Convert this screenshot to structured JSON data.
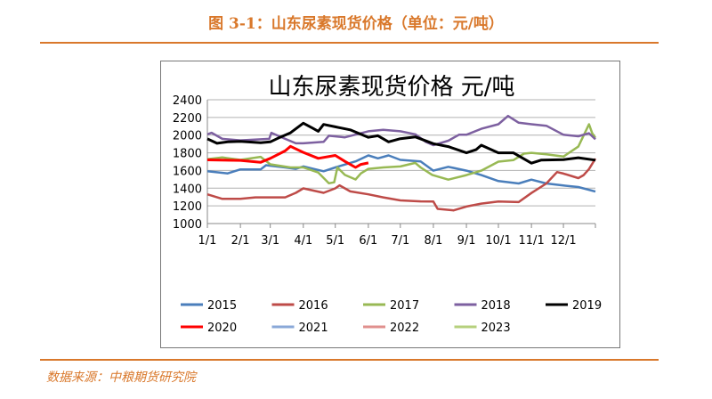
{
  "figure_title": "图 3-1：山东尿素现货价格（单位：元/吨）",
  "source": "数据来源：中粮期货研究院",
  "chart_data": {
    "type": "line",
    "title": "山东尿素现货价格 元/吨",
    "xlabel": "",
    "ylabel": "",
    "ylim": [
      1000,
      2400
    ],
    "yticks": [
      "1000",
      "1200",
      "1400",
      "1600",
      "1800",
      "2000",
      "2200",
      "2400"
    ],
    "xticks": [
      "1/1",
      "2/1",
      "3/1",
      "4/1",
      "5/1",
      "6/1",
      "7/1",
      "8/1",
      "9/1",
      "10/1",
      "11/1",
      "12/1"
    ],
    "grid": "horizontal",
    "legend": "bottom",
    "series": [
      {
        "name": "2015",
        "color": "#4a7ebb",
        "points": [
          [
            "01-01",
            1591
          ],
          [
            "01-20",
            1567
          ],
          [
            "02-01",
            1612
          ],
          [
            "02-20",
            1612
          ],
          [
            "02-25",
            1660
          ],
          [
            "03-15",
            1635
          ],
          [
            "03-25",
            1618
          ],
          [
            "04-01",
            1646
          ],
          [
            "04-20",
            1591
          ],
          [
            "05-01",
            1635
          ],
          [
            "05-20",
            1703
          ],
          [
            "06-01",
            1771
          ],
          [
            "06-10",
            1737
          ],
          [
            "06-20",
            1771
          ],
          [
            "07-01",
            1720
          ],
          [
            "07-20",
            1703
          ],
          [
            "08-01",
            1598
          ],
          [
            "08-15",
            1642
          ],
          [
            "09-01",
            1598
          ],
          [
            "09-15",
            1548
          ],
          [
            "10-01",
            1480
          ],
          [
            "10-20",
            1453
          ],
          [
            "11-01",
            1497
          ],
          [
            "11-15",
            1453
          ],
          [
            "12-01",
            1430
          ],
          [
            "12-15",
            1413
          ],
          [
            "12-31",
            1362
          ]
        ]
      },
      {
        "name": "2016",
        "color": "#be4b48",
        "points": [
          [
            "01-01",
            1330
          ],
          [
            "01-15",
            1279
          ],
          [
            "02-01",
            1279
          ],
          [
            "02-15",
            1296
          ],
          [
            "03-01",
            1296
          ],
          [
            "03-15",
            1296
          ],
          [
            "03-25",
            1347
          ],
          [
            "04-01",
            1398
          ],
          [
            "04-20",
            1347
          ],
          [
            "05-01",
            1398
          ],
          [
            "05-05",
            1432
          ],
          [
            "05-15",
            1364
          ],
          [
            "06-01",
            1330
          ],
          [
            "06-15",
            1296
          ],
          [
            "07-01",
            1262
          ],
          [
            "07-20",
            1251
          ],
          [
            "08-01",
            1250
          ],
          [
            "08-05",
            1166
          ],
          [
            "08-20",
            1149
          ],
          [
            "09-01",
            1192
          ],
          [
            "09-15",
            1226
          ],
          [
            "10-01",
            1250
          ],
          [
            "10-20",
            1243
          ],
          [
            "11-01",
            1345
          ],
          [
            "11-15",
            1453
          ],
          [
            "11-25",
            1582
          ],
          [
            "12-01",
            1565
          ],
          [
            "12-15",
            1514
          ],
          [
            "12-20",
            1548
          ],
          [
            "12-25",
            1616
          ],
          [
            "12-31",
            1734
          ]
        ]
      },
      {
        "name": "2017",
        "color": "#98b954",
        "points": [
          [
            "01-01",
            1727
          ],
          [
            "01-15",
            1747
          ],
          [
            "02-01",
            1720
          ],
          [
            "02-20",
            1754
          ],
          [
            "03-01",
            1670
          ],
          [
            "03-20",
            1635
          ],
          [
            "04-01",
            1635
          ],
          [
            "04-15",
            1577
          ],
          [
            "04-25",
            1455
          ],
          [
            "04-30",
            1466
          ],
          [
            "05-03",
            1635
          ],
          [
            "05-10",
            1550
          ],
          [
            "05-20",
            1499
          ],
          [
            "05-25",
            1567
          ],
          [
            "06-01",
            1618
          ],
          [
            "06-15",
            1635
          ],
          [
            "07-01",
            1646
          ],
          [
            "07-15",
            1686
          ],
          [
            "07-20",
            1635
          ],
          [
            "07-31",
            1550
          ],
          [
            "08-15",
            1497
          ],
          [
            "09-01",
            1548
          ],
          [
            "09-15",
            1598
          ],
          [
            "10-01",
            1700
          ],
          [
            "10-15",
            1717
          ],
          [
            "10-25",
            1791
          ],
          [
            "11-01",
            1800
          ],
          [
            "11-15",
            1784
          ],
          [
            "12-01",
            1757
          ],
          [
            "12-15",
            1870
          ],
          [
            "12-25",
            2123
          ],
          [
            "12-28",
            2021
          ],
          [
            "12-31",
            1970
          ]
        ]
      },
      {
        "name": "2018",
        "color": "#7d60a0",
        "points": [
          [
            "01-01",
            2009
          ],
          [
            "01-05",
            2026
          ],
          [
            "01-15",
            1958
          ],
          [
            "02-01",
            1941
          ],
          [
            "02-28",
            1958
          ],
          [
            "03-02",
            2026
          ],
          [
            "03-15",
            1958
          ],
          [
            "03-25",
            1907
          ],
          [
            "04-01",
            1907
          ],
          [
            "04-20",
            1924
          ],
          [
            "04-25",
            1993
          ],
          [
            "05-10",
            1975
          ],
          [
            "06-01",
            2043
          ],
          [
            "06-15",
            2060
          ],
          [
            "07-01",
            2043
          ],
          [
            "07-15",
            2009
          ],
          [
            "07-25",
            1924
          ],
          [
            "08-01",
            1886
          ],
          [
            "08-15",
            1937
          ],
          [
            "08-25",
            2004
          ],
          [
            "09-01",
            2004
          ],
          [
            "09-15",
            2072
          ],
          [
            "10-01",
            2123
          ],
          [
            "10-10",
            2217
          ],
          [
            "10-20",
            2140
          ],
          [
            "11-01",
            2123
          ],
          [
            "11-15",
            2106
          ],
          [
            "12-01",
            2004
          ],
          [
            "12-15",
            1987
          ],
          [
            "12-25",
            2021
          ],
          [
            "12-31",
            1953
          ]
        ]
      },
      {
        "name": "2019",
        "color": "#000000",
        "points": [
          [
            "01-01",
            1958
          ],
          [
            "01-10",
            1907
          ],
          [
            "01-20",
            1924
          ],
          [
            "02-01",
            1930
          ],
          [
            "02-20",
            1914
          ],
          [
            "03-01",
            1924
          ],
          [
            "03-10",
            1975
          ],
          [
            "03-20",
            2026
          ],
          [
            "04-01",
            2135
          ],
          [
            "04-10",
            2077
          ],
          [
            "04-15",
            2043
          ],
          [
            "04-20",
            2121
          ],
          [
            "05-01",
            2094
          ],
          [
            "05-15",
            2060
          ],
          [
            "06-01",
            1975
          ],
          [
            "06-10",
            1993
          ],
          [
            "06-20",
            1924
          ],
          [
            "07-01",
            1960
          ],
          [
            "07-15",
            1980
          ],
          [
            "08-01",
            1903
          ],
          [
            "08-15",
            1870
          ],
          [
            "09-01",
            1800
          ],
          [
            "09-10",
            1835
          ],
          [
            "09-15",
            1886
          ],
          [
            "10-01",
            1800
          ],
          [
            "10-15",
            1800
          ],
          [
            "11-01",
            1683
          ],
          [
            "11-10",
            1717
          ],
          [
            "12-01",
            1723
          ],
          [
            "12-15",
            1744
          ],
          [
            "12-31",
            1717
          ]
        ]
      },
      {
        "name": "2020",
        "color": "#ff0000",
        "points": [
          [
            "01-01",
            1720
          ],
          [
            "02-01",
            1714
          ],
          [
            "02-20",
            1693
          ],
          [
            "03-01",
            1737
          ],
          [
            "03-15",
            1822
          ],
          [
            "03-20",
            1873
          ],
          [
            "04-01",
            1805
          ],
          [
            "04-15",
            1737
          ],
          [
            "05-01",
            1771
          ],
          [
            "05-10",
            1703
          ],
          [
            "05-20",
            1635
          ],
          [
            "05-25",
            1669
          ],
          [
            "06-01",
            1686
          ]
        ]
      },
      {
        "name": "2021",
        "color": "#8aa8d8",
        "points": []
      },
      {
        "name": "2022",
        "color": "#e0908e",
        "points": []
      },
      {
        "name": "2023",
        "color": "#b6d07d",
        "points": []
      }
    ]
  }
}
